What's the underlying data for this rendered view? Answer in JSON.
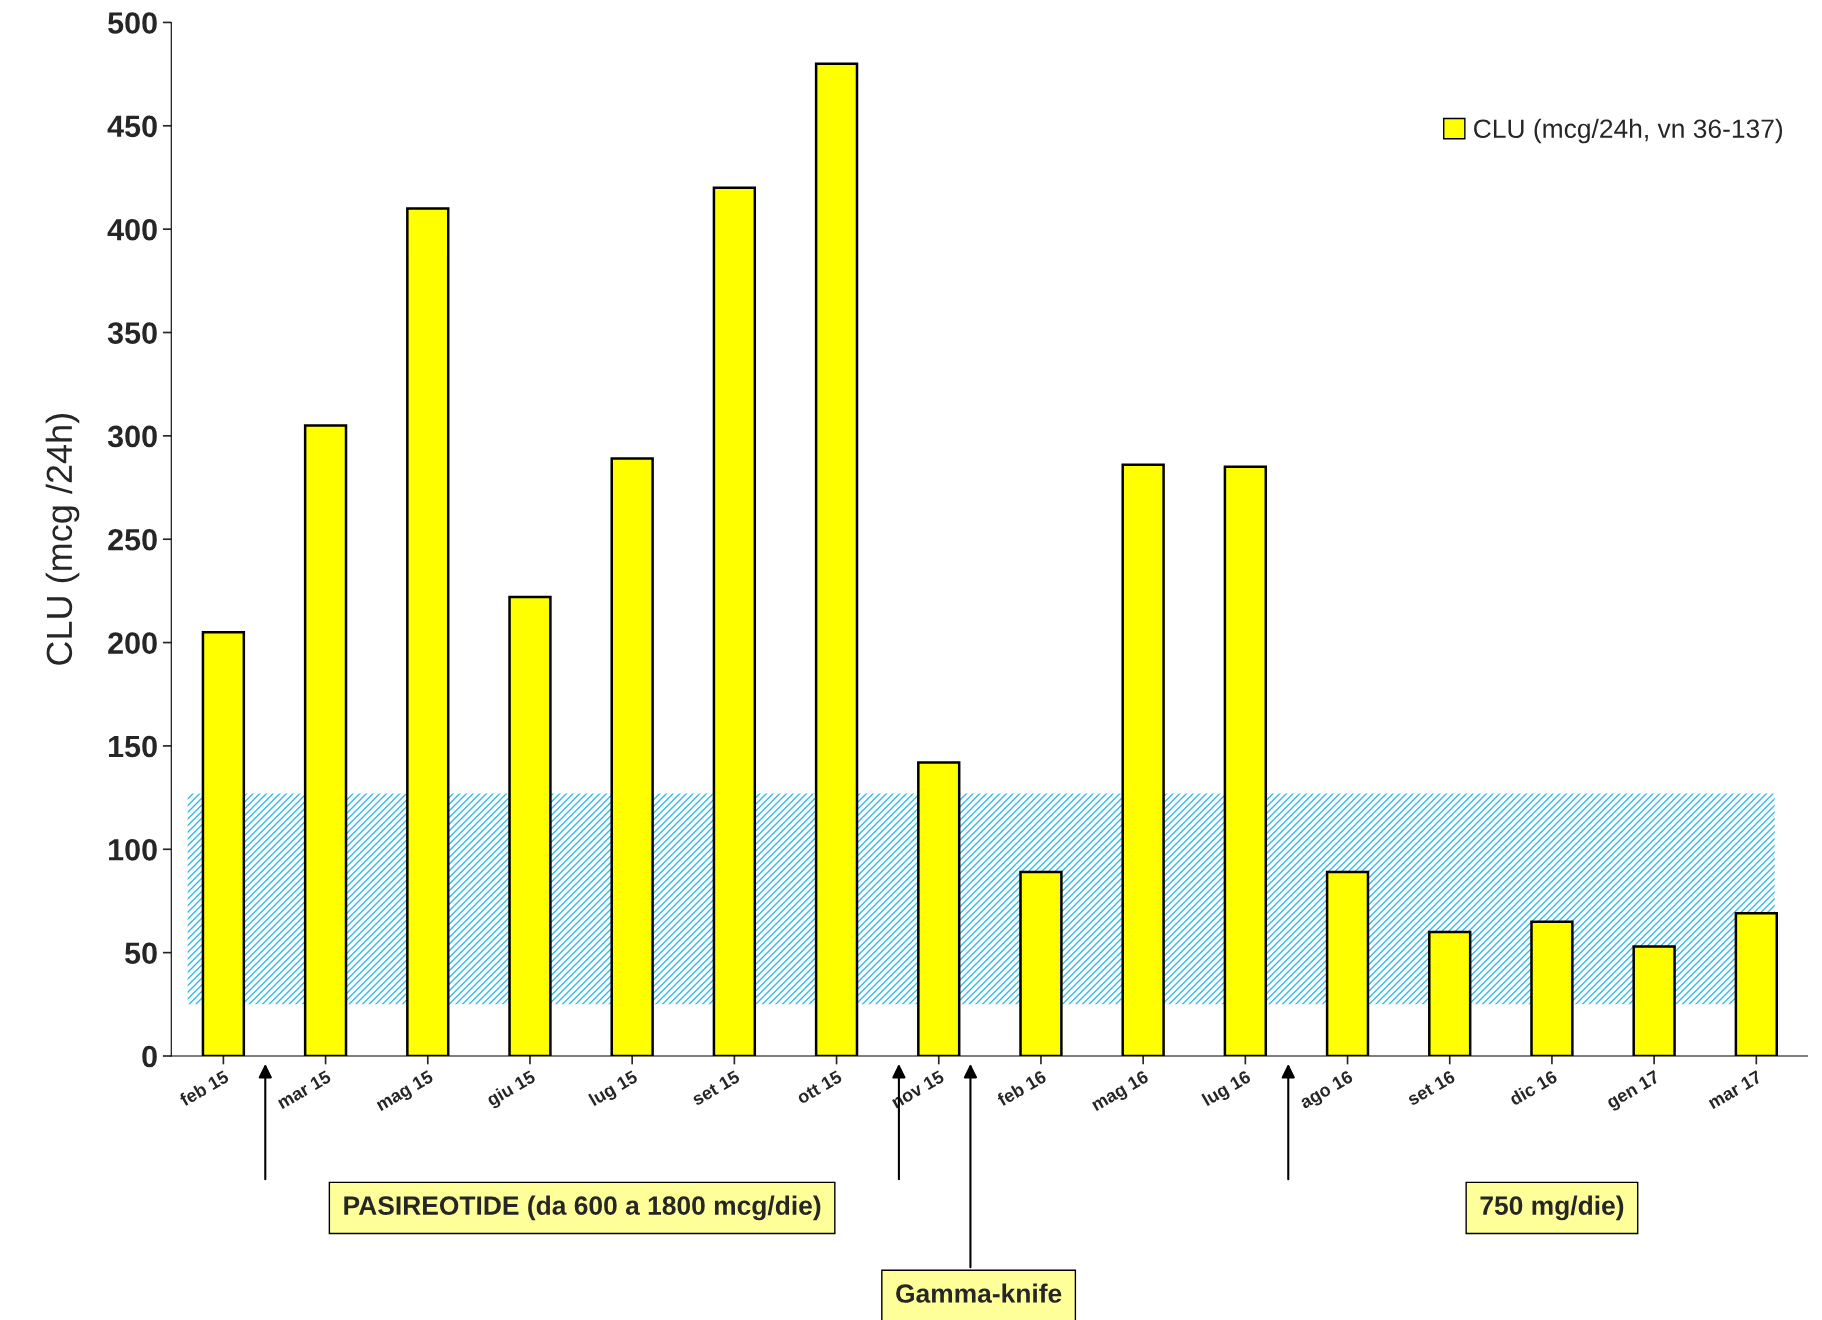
{
  "chart_data": {
    "type": "bar",
    "ylabel": "CLU (mcg /24h)",
    "categories": [
      "feb 15",
      "mar 15",
      "mag 15",
      "giu 15",
      "lug 15",
      "set 15",
      "ott 15",
      "nov 15",
      "feb 16",
      "mag 16",
      "lug 16",
      "ago 16",
      "set 16",
      "dic 16",
      "gen 17",
      "mar 17"
    ],
    "series": [
      {
        "name": "CLU (mcg/24h, vn 36-137)",
        "color": "#ffff00",
        "values": [
          205,
          305,
          410,
          222,
          289,
          420,
          480,
          142,
          89,
          286,
          285,
          89,
          60,
          65,
          53,
          69
        ]
      }
    ],
    "ylim": [
      0,
      500
    ],
    "yticks": [
      0,
      50,
      100,
      150,
      200,
      250,
      300,
      350,
      400,
      450,
      500
    ],
    "bands": [
      {
        "axis": "y",
        "from": 25,
        "to": 127,
        "color": "#33bbee"
      }
    ],
    "annotations": [
      "PASIREOTIDE (da 600 a 1800 mcg/die)",
      "Gamma-knife",
      "750 mg/die)"
    ],
    "legend": "top right",
    "grid": false
  }
}
